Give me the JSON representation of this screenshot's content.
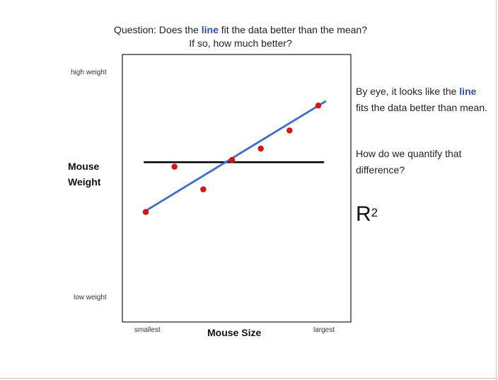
{
  "question": {
    "line1_pre": "Question:  Does the ",
    "line1_highlight": "line",
    "line1_post": " fit the data better than the mean?",
    "line2": "If so, how much better?"
  },
  "side_note": {
    "p1_pre": "By eye, it looks like the ",
    "p1_highlight": "line",
    "p1_post": " fits the data better than mean.",
    "p2": "How do we quantify that difference?",
    "r2_base": "R",
    "r2_exp": "2"
  },
  "colors": {
    "highlight": "#2e4fb0",
    "fit_line": "#3a6fd8",
    "mean_line": "#000000",
    "points": "#e01010"
  },
  "chart_data": {
    "type": "scatter",
    "title": "",
    "xlabel": "Mouse Size",
    "ylabel": "Mouse Weight",
    "x_tick_labels": {
      "min": "smallest",
      "max": "largest"
    },
    "y_tick_labels": {
      "max": "high weight",
      "min": "low weight"
    },
    "xlim": [
      0,
      10
    ],
    "ylim": [
      0,
      10
    ],
    "grid": false,
    "points": [
      {
        "x": 1.0,
        "y": 3.7
      },
      {
        "x": 2.5,
        "y": 5.7
      },
      {
        "x": 4.0,
        "y": 4.7
      },
      {
        "x": 5.5,
        "y": 6.0
      },
      {
        "x": 7.0,
        "y": 6.5
      },
      {
        "x": 8.5,
        "y": 7.3
      },
      {
        "x": 10.0,
        "y": 8.4
      }
    ],
    "mean_line": {
      "y": 5.9,
      "x_start": 0.9,
      "x_end": 10.3
    },
    "fit_line": {
      "x_start": 0.9,
      "y_start": 3.7,
      "x_end": 10.4,
      "y_end": 8.6
    }
  }
}
